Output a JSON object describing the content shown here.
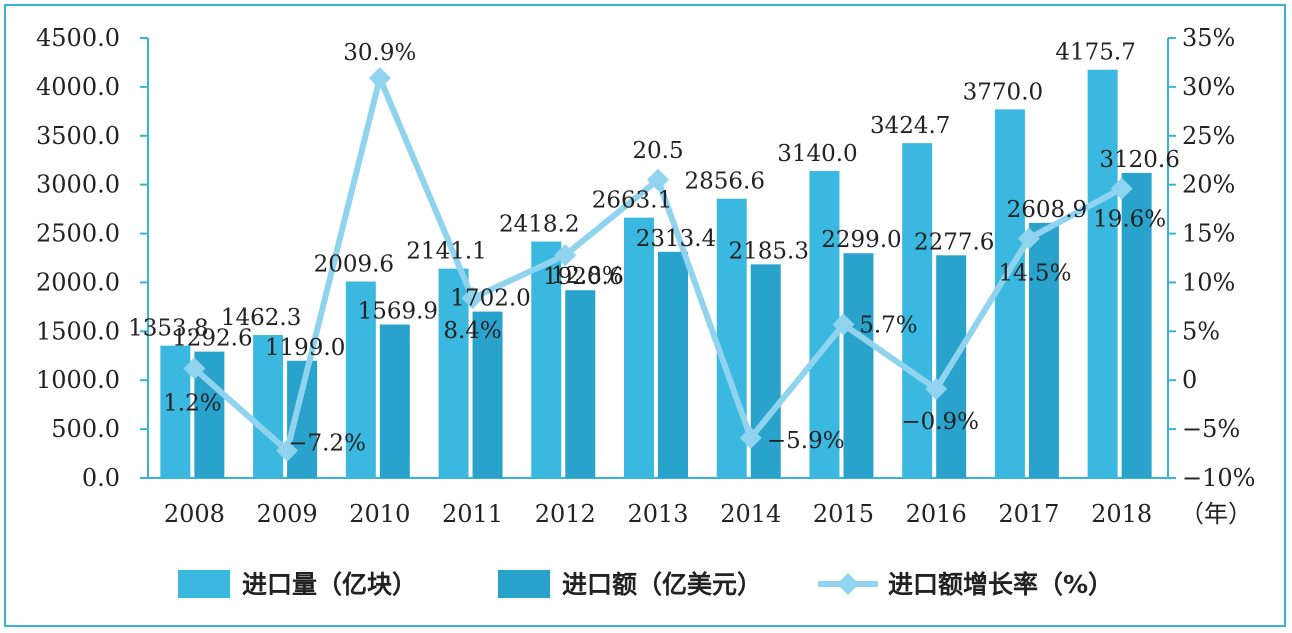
{
  "chart_data": {
    "type": "bar",
    "categories": [
      "2008",
      "2009",
      "2010",
      "2011",
      "2012",
      "2013",
      "2014",
      "2015",
      "2016",
      "2017",
      "2018"
    ],
    "xunit": "（年）",
    "series": [
      {
        "name": "进口量（亿块）",
        "kind": "bar",
        "axis": "left",
        "values": [
          1353.8,
          1462.3,
          2009.6,
          2141.1,
          2418.2,
          2663.1,
          2856.6,
          3140.0,
          3424.7,
          3770.0,
          4175.7
        ],
        "labels": [
          "1353.8",
          "1462.3",
          "2009.6",
          "2141.1",
          "2418.2",
          "2663.1",
          "2856.6",
          "3140.0",
          "3424.7",
          "3770.0",
          "4175.7"
        ],
        "color": "#3bb8df"
      },
      {
        "name": "进口额（亿美元）",
        "kind": "bar",
        "axis": "left",
        "values": [
          1292.6,
          1199.0,
          1569.9,
          1702.0,
          1920.6,
          2313.4,
          2185.3,
          2299.0,
          2277.6,
          2608.9,
          3120.6
        ],
        "labels": [
          "1292.6",
          "1199.0",
          "1569.9",
          "1702.0",
          "1920.6",
          "2313.4",
          "2185.3",
          "2299.0",
          "2277.6",
          "2608.9",
          "3120.6"
        ],
        "color": "#2aa3cc"
      },
      {
        "name": "进口额增长率（%）",
        "kind": "line",
        "axis": "right",
        "values": [
          1.2,
          -7.2,
          30.9,
          8.4,
          12.8,
          20.5,
          -5.9,
          5.7,
          -0.9,
          14.5,
          19.6
        ],
        "labels": [
          "1.2%",
          "−7.2%",
          "30.9%",
          "8.4%",
          "12.8%",
          "20.5",
          "−5.9%",
          "5.7%",
          "−0.9%",
          "14.5%",
          "19.6%"
        ],
        "color": "#8fd3ef"
      }
    ],
    "left_axis": {
      "ylim": [
        0,
        4500
      ],
      "ticks": [
        "0.0",
        "500.0",
        "1000.0",
        "1500.0",
        "2000.0",
        "2500.0",
        "3000.0",
        "3500.0",
        "4000.0",
        "4500.0"
      ]
    },
    "right_axis": {
      "ylim": [
        -10,
        35
      ],
      "ticks": [
        "−10%",
        "−5%",
        "0",
        "5%",
        "10%",
        "15%",
        "20%",
        "25%",
        "30%",
        "35%"
      ]
    },
    "axis_color": "#3bb2d8",
    "legend_position": "bottom"
  }
}
